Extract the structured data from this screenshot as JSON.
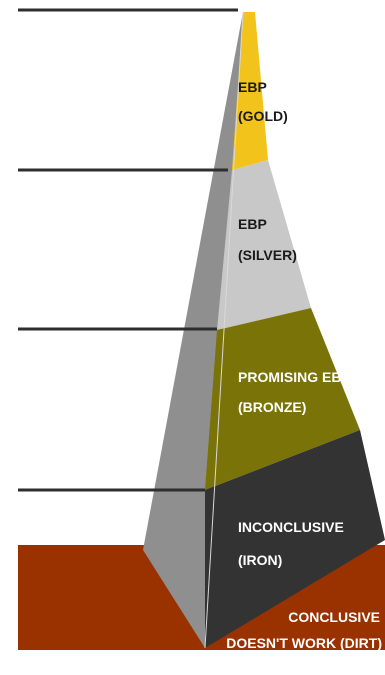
{
  "tiers": [
    {
      "key": "gold",
      "line1": "EBP",
      "line2": "(GOLD)",
      "color": "#f2c31a",
      "text_color": "#1a1a1a"
    },
    {
      "key": "silver",
      "line1": "EBP",
      "line2": "(SILVER)",
      "color": "#c8c8c8",
      "text_color": "#1a1a1a"
    },
    {
      "key": "bronze",
      "line1": "PROMISING EBP",
      "line2": "(BRONZE)",
      "color": "#7a7408",
      "text_color": "#ffffff"
    },
    {
      "key": "iron",
      "line1": "INCONCLUSIVE",
      "line2": "(IRON)",
      "color": "#333333",
      "text_color": "#ffffff"
    }
  ],
  "ground": {
    "line1": "CONCLUSIVE",
    "line2": "DOESN'T WORK (DIRT)",
    "color": "#9a3200",
    "text_color": "#ffffff"
  },
  "pyramid_side_color": "#8f8f8f",
  "divider_color": "#2e2e2e"
}
